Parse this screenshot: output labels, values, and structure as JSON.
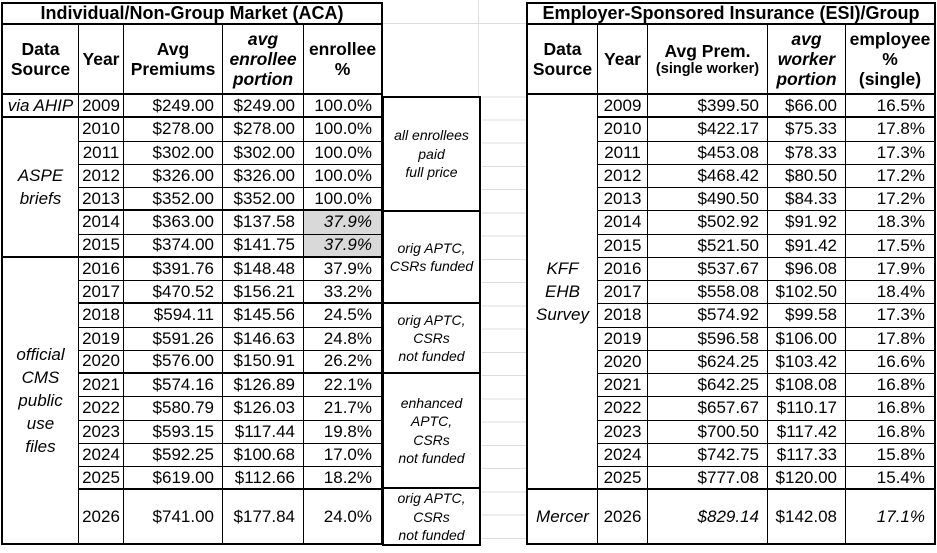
{
  "left_table": {
    "title": "Individual/Non-Group Market (ACA)",
    "headers": {
      "source": "Data\nSource",
      "year": "Year",
      "premium": "Avg\nPremiums",
      "portion": "avg\nenrollee\nportion",
      "pct": "enrollee\n%"
    },
    "source_groups": [
      {
        "label": "via AHIP",
        "span": 1
      },
      {
        "label": "ASPE\nbriefs",
        "span": 6
      },
      {
        "label": "official\nCMS\npublic\nuse\nfiles",
        "span": 11
      }
    ],
    "rows": [
      {
        "year": "2009",
        "premium": "$249.00",
        "portion": "$249.00",
        "pct": "100.0%"
      },
      {
        "year": "2010",
        "premium": "$278.00",
        "portion": "$278.00",
        "pct": "100.0%"
      },
      {
        "year": "2011",
        "premium": "$302.00",
        "portion": "$302.00",
        "pct": "100.0%"
      },
      {
        "year": "2012",
        "premium": "$326.00",
        "portion": "$326.00",
        "pct": "100.0%"
      },
      {
        "year": "2013",
        "premium": "$352.00",
        "portion": "$352.00",
        "pct": "100.0%"
      },
      {
        "year": "2014",
        "premium": "$363.00",
        "portion": "$137.58",
        "pct": "37.9%",
        "pct_shaded": true
      },
      {
        "year": "2015",
        "premium": "$374.00",
        "portion": "$141.75",
        "pct": "37.9%",
        "pct_shaded": true
      },
      {
        "year": "2016",
        "premium": "$391.76",
        "portion": "$148.48",
        "pct": "37.9%"
      },
      {
        "year": "2017",
        "premium": "$470.52",
        "portion": "$156.21",
        "pct": "33.2%"
      },
      {
        "year": "2018",
        "premium": "$594.11",
        "portion": "$145.56",
        "pct": "24.5%"
      },
      {
        "year": "2019",
        "premium": "$591.26",
        "portion": "$146.63",
        "pct": "24.8%"
      },
      {
        "year": "2020",
        "premium": "$576.00",
        "portion": "$150.91",
        "pct": "26.2%"
      },
      {
        "year": "2021",
        "premium": "$574.16",
        "portion": "$126.89",
        "pct": "22.1%"
      },
      {
        "year": "2022",
        "premium": "$580.79",
        "portion": "$126.03",
        "pct": "21.7%"
      },
      {
        "year": "2023",
        "premium": "$593.15",
        "portion": "$117.44",
        "pct": "19.8%"
      },
      {
        "year": "2024",
        "premium": "$592.25",
        "portion": "$100.68",
        "pct": "17.0%"
      },
      {
        "year": "2025",
        "premium": "$619.00",
        "portion": "$112.66",
        "pct": "18.2%"
      },
      {
        "year": "2026",
        "premium": "$741.00",
        "portion": "$177.84",
        "pct": "24.0%"
      }
    ]
  },
  "right_table": {
    "title": "Employer-Sponsored Insurance (ESI)/Group",
    "headers": {
      "source": "Data\nSource",
      "year": "Year",
      "premium": "Avg Prem.",
      "premium_sub": "(single worker)",
      "portion": "avg\nworker\nportion",
      "pct": "employee\n%\n(single)"
    },
    "source_groups": [
      {
        "label": "KFF\nEHB\nSurvey",
        "span": 17
      },
      {
        "label": "Mercer",
        "span": 1
      }
    ],
    "rows": [
      {
        "year": "2009",
        "premium": "$399.50",
        "portion": "$66.00",
        "pct": "16.5%"
      },
      {
        "year": "2010",
        "premium": "$422.17",
        "portion": "$75.33",
        "pct": "17.8%"
      },
      {
        "year": "2011",
        "premium": "$453.08",
        "portion": "$78.33",
        "pct": "17.3%"
      },
      {
        "year": "2012",
        "premium": "$468.42",
        "portion": "$80.50",
        "pct": "17.2%"
      },
      {
        "year": "2013",
        "premium": "$490.50",
        "portion": "$84.33",
        "pct": "17.2%"
      },
      {
        "year": "2014",
        "premium": "$502.92",
        "portion": "$91.92",
        "pct": "18.3%"
      },
      {
        "year": "2015",
        "premium": "$521.50",
        "portion": "$91.42",
        "pct": "17.5%"
      },
      {
        "year": "2016",
        "premium": "$537.67",
        "portion": "$96.08",
        "pct": "17.9%"
      },
      {
        "year": "2017",
        "premium": "$558.08",
        "portion": "$102.50",
        "pct": "18.4%"
      },
      {
        "year": "2018",
        "premium": "$574.92",
        "portion": "$99.58",
        "pct": "17.3%"
      },
      {
        "year": "2019",
        "premium": "$596.58",
        "portion": "$106.00",
        "pct": "17.8%"
      },
      {
        "year": "2020",
        "premium": "$624.25",
        "portion": "$103.42",
        "pct": "16.6%"
      },
      {
        "year": "2021",
        "premium": "$642.25",
        "portion": "$108.08",
        "pct": "16.8%"
      },
      {
        "year": "2022",
        "premium": "$657.67",
        "portion": "$110.17",
        "pct": "16.8%"
      },
      {
        "year": "2023",
        "premium": "$700.50",
        "portion": "$117.42",
        "pct": "16.8%"
      },
      {
        "year": "2024",
        "premium": "$742.75",
        "portion": "$117.33",
        "pct": "15.8%"
      },
      {
        "year": "2025",
        "premium": "$777.08",
        "portion": "$120.00",
        "pct": "15.4%"
      },
      {
        "year": "2026",
        "premium": "$829.14",
        "portion": "$142.08",
        "pct": "17.1%",
        "premium_italic": true,
        "pct_italic": true
      }
    ]
  },
  "annotations": [
    {
      "text": "all enrollees\npaid\nfull price"
    },
    {
      "text": "orig APTC,\nCSRs funded"
    },
    {
      "text": "orig APTC,\nCSRs\nnot funded"
    },
    {
      "text": "enhanced\nAPTC,\nCSRs\nnot funded"
    },
    {
      "text": "orig APTC,\nCSRs\nnot funded"
    }
  ],
  "colors": {
    "shaded_cell": "#d9d9d9",
    "border": "#000000",
    "gridline": "#dcdcdc"
  }
}
